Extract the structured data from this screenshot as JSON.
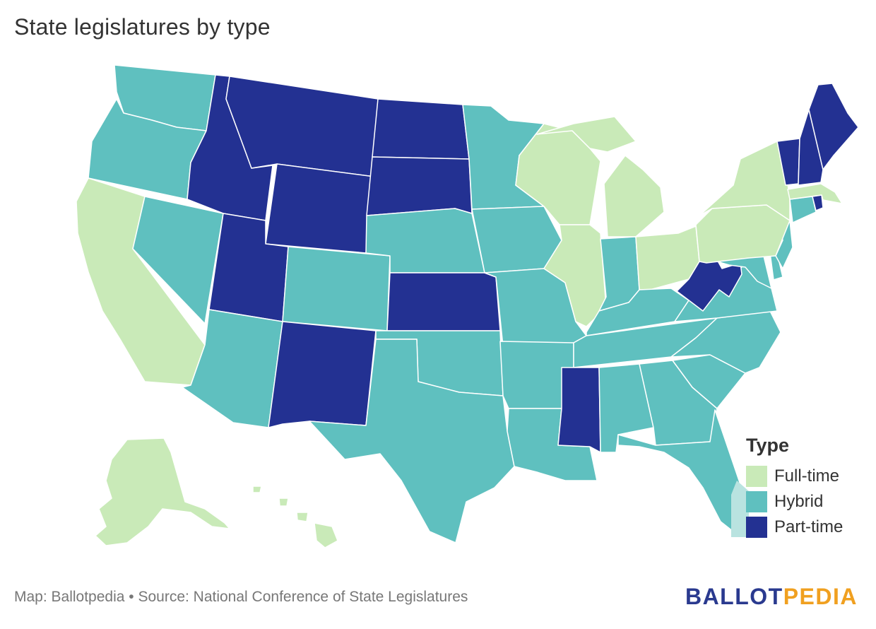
{
  "title": "State legislatures by type",
  "legend": {
    "title": "Type",
    "items": [
      {
        "label": "Full-time",
        "color": "#c9eab8"
      },
      {
        "label": "Hybrid",
        "color": "#5fc0bf"
      },
      {
        "label": "Part-time",
        "color": "#233192"
      }
    ]
  },
  "source": "Map: Ballotpedia • Source: National Conference of State Legislatures",
  "logo": {
    "part1": "BALLOT",
    "part2": "PEDIA"
  },
  "colors": {
    "full_time": "#c9eab8",
    "hybrid": "#5fc0bf",
    "part_time": "#233192",
    "dc": "#b9e3e0"
  },
  "states": {
    "WA": "hybrid",
    "OR": "hybrid",
    "CA": "full_time",
    "NV": "hybrid",
    "ID": "part_time",
    "MT": "part_time",
    "WY": "part_time",
    "UT": "part_time",
    "AZ": "hybrid",
    "CO": "hybrid",
    "NM": "part_time",
    "ND": "part_time",
    "SD": "part_time",
    "NE": "hybrid",
    "KS": "part_time",
    "OK": "hybrid",
    "TX": "hybrid",
    "MN": "hybrid",
    "IA": "hybrid",
    "MO": "hybrid",
    "AR": "hybrid",
    "LA": "hybrid",
    "WI": "full_time",
    "IL": "full_time",
    "MI": "full_time",
    "IN": "hybrid",
    "OH": "full_time",
    "KY": "hybrid",
    "TN": "hybrid",
    "MS": "part_time",
    "AL": "hybrid",
    "GA": "hybrid",
    "FL": "hybrid",
    "SC": "hybrid",
    "NC": "hybrid",
    "VA": "hybrid",
    "WV": "part_time",
    "MD": "hybrid",
    "DE": "hybrid",
    "NJ": "hybrid",
    "PA": "full_time",
    "NY": "full_time",
    "CT": "hybrid",
    "RI": "part_time",
    "MA": "full_time",
    "VT": "part_time",
    "NH": "part_time",
    "ME": "part_time",
    "AK": "full_time",
    "HI": "full_time"
  }
}
